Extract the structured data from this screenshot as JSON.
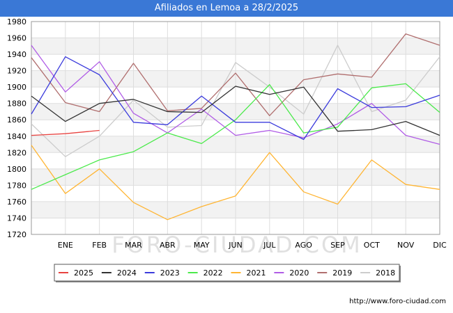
{
  "title": "Afiliados en Lemoa a 28/2/2025",
  "source": "http://www.foro-ciudad.com",
  "watermark": "FORO-CIUDAD.COM",
  "chart_data": {
    "type": "line",
    "title": "Afiliados en Lemoa a 28/2/2025",
    "xlabel": "",
    "ylabel": "",
    "categories": [
      "",
      "ENE",
      "FEB",
      "MAR",
      "ABR",
      "MAY",
      "JUN",
      "JUL",
      "AGO",
      "SEP",
      "OCT",
      "NOV",
      "DIC"
    ],
    "ylim": [
      1720,
      1980
    ],
    "yticks": [
      1720,
      1740,
      1760,
      1780,
      1800,
      1820,
      1840,
      1860,
      1880,
      1900,
      1920,
      1940,
      1960,
      1980
    ],
    "grid": true,
    "legend_position": "bottom",
    "series": [
      {
        "name": "2025",
        "color": "#e8423f",
        "values": [
          1841,
          1843,
          1847,
          null,
          null,
          null,
          null,
          null,
          null,
          null,
          null,
          null,
          null
        ]
      },
      {
        "name": "2024",
        "color": "#333333",
        "values": [
          1889,
          1858,
          1880,
          1885,
          1870,
          1869,
          1901,
          1891,
          1900,
          1846,
          1848,
          1858,
          1841
        ]
      },
      {
        "name": "2023",
        "color": "#3b3bdc",
        "values": [
          1867,
          1937,
          1915,
          1857,
          1854,
          1889,
          1857,
          1857,
          1836,
          1898,
          1875,
          1876,
          1890
        ]
      },
      {
        "name": "2022",
        "color": "#4bea4b",
        "values": [
          1775,
          1793,
          1811,
          1821,
          1844,
          1831,
          1860,
          1903,
          1844,
          1851,
          1899,
          1904,
          1869
        ]
      },
      {
        "name": "2021",
        "color": "#ffb533",
        "values": [
          1829,
          1770,
          1800,
          1759,
          1738,
          1754,
          1767,
          1820,
          1772,
          1757,
          1811,
          1781,
          1775
        ]
      },
      {
        "name": "2020",
        "color": "#b05ce6",
        "values": [
          1951,
          1894,
          1931,
          1868,
          1844,
          1873,
          1841,
          1847,
          1838,
          1855,
          1880,
          1841,
          1830
        ]
      },
      {
        "name": "2019",
        "color": "#b06e6e",
        "values": [
          1936,
          1881,
          1870,
          1929,
          1871,
          1874,
          1917,
          1865,
          1909,
          1916,
          1912,
          1965,
          1951
        ]
      },
      {
        "name": "2018",
        "color": "#cccccc",
        "values": [
          1855,
          1815,
          1840,
          1884,
          1851,
          1853,
          1930,
          1900,
          1867,
          1951,
          1870,
          1884,
          1937
        ]
      }
    ]
  }
}
